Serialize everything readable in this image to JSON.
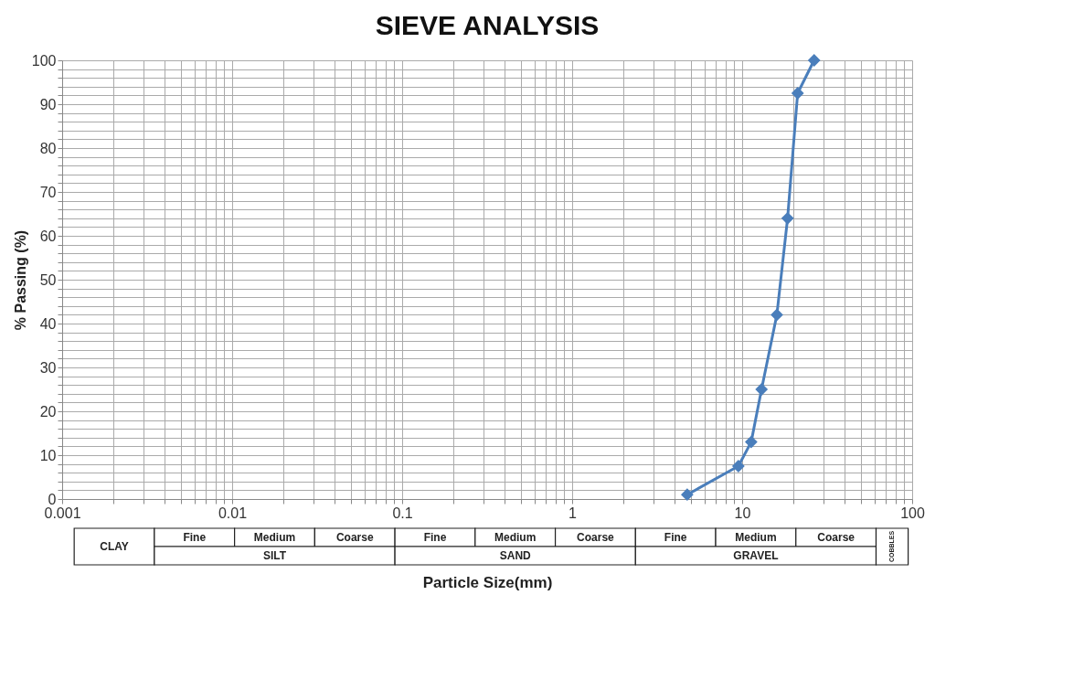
{
  "chart_data": {
    "type": "line",
    "title": "SIEVE ANALYSIS",
    "xlabel": "Particle Size(mm)",
    "ylabel": "% Passing (%)",
    "x": [
      4.75,
      9.5,
      11.3,
      13,
      16,
      18.5,
      21.2,
      26.5
    ],
    "series": [
      {
        "color": "#4a7ebb",
        "values": [
          1,
          7.5,
          13,
          25,
          42,
          64,
          92.5,
          100
        ]
      }
    ],
    "log": "x",
    "marker": "diamond",
    "line_style": "solid",
    "grid": true,
    "xlim": [
      0.001,
      100
    ],
    "ylim": [
      0,
      100
    ],
    "xticks": [
      0.001,
      {
        "value": 0.002,
        "label": null
      },
      {
        "value": 0.003,
        "label": null
      },
      {
        "value": 0.004,
        "label": null
      },
      {
        "value": 0.005,
        "label": null
      },
      {
        "value": 0.006,
        "label": null
      },
      {
        "value": 0.007,
        "label": null
      },
      {
        "value": 0.008,
        "label": null
      },
      {
        "value": 0.009,
        "label": null
      },
      0.01,
      {
        "value": 0.02,
        "label": null
      },
      {
        "value": 0.03,
        "label": null
      },
      {
        "value": 0.04,
        "label": null
      },
      {
        "value": 0.05,
        "label": null
      },
      {
        "value": 0.06,
        "label": null
      },
      {
        "value": 0.07,
        "label": null
      },
      {
        "value": 0.08,
        "label": null
      },
      {
        "value": 0.09,
        "label": null
      },
      0.1,
      {
        "value": 0.2,
        "label": null
      },
      {
        "value": 0.3,
        "label": null
      },
      {
        "value": 0.4,
        "label": null
      },
      {
        "value": 0.5,
        "label": null
      },
      {
        "value": 0.6,
        "label": null
      },
      {
        "value": 0.7,
        "label": null
      },
      {
        "value": 0.8,
        "label": null
      },
      {
        "value": 0.9,
        "label": null
      },
      1,
      {
        "value": 2,
        "label": null
      },
      {
        "value": 3,
        "label": null
      },
      {
        "value": 4,
        "label": null
      },
      {
        "value": 5,
        "label": null
      },
      {
        "value": 6,
        "label": null
      },
      {
        "value": 7,
        "label": null
      },
      {
        "value": 8,
        "label": null
      },
      {
        "value": 9,
        "label": null
      },
      10,
      {
        "value": 20,
        "label": null
      },
      {
        "value": 30,
        "label": null
      },
      {
        "value": 40,
        "label": null
      },
      {
        "value": 50,
        "label": null
      },
      {
        "value": 60,
        "label": null
      },
      {
        "value": 70,
        "label": null
      },
      {
        "value": 80,
        "label": null
      },
      {
        "value": 90,
        "label": null
      },
      100
    ],
    "yticks": [
      0,
      {
        "value": 2,
        "label": null
      },
      {
        "value": 4,
        "label": null
      },
      {
        "value": 6,
        "label": null
      },
      {
        "value": 8,
        "label": null
      },
      10,
      {
        "value": 12,
        "label": null
      },
      {
        "value": 14,
        "label": null
      },
      {
        "value": 16,
        "label": null
      },
      {
        "value": 18,
        "label": null
      },
      20,
      {
        "value": 22,
        "label": null
      },
      {
        "value": 24,
        "label": null
      },
      {
        "value": 26,
        "label": null
      },
      {
        "value": 28,
        "label": null
      },
      30,
      {
        "value": 32,
        "label": null
      },
      {
        "value": 34,
        "label": null
      },
      {
        "value": 36,
        "label": null
      },
      {
        "value": 38,
        "label": null
      },
      40,
      {
        "value": 42,
        "label": null
      },
      {
        "value": 44,
        "label": null
      },
      {
        "value": 46,
        "label": null
      },
      {
        "value": 48,
        "label": null
      },
      50,
      {
        "value": 52,
        "label": null
      },
      {
        "value": 54,
        "label": null
      },
      {
        "value": 56,
        "label": null
      },
      {
        "value": 58,
        "label": null
      },
      60,
      {
        "value": 62,
        "label": null
      },
      {
        "value": 64,
        "label": null
      },
      {
        "value": 66,
        "label": null
      },
      {
        "value": 68,
        "label": null
      },
      70,
      {
        "value": 72,
        "label": null
      },
      {
        "value": 74,
        "label": null
      },
      {
        "value": 76,
        "label": null
      },
      {
        "value": 78,
        "label": null
      },
      80,
      {
        "value": 82,
        "label": null
      },
      {
        "value": 84,
        "label": null
      },
      {
        "value": 86,
        "label": null
      },
      {
        "value": 88,
        "label": null
      },
      90,
      {
        "value": 92,
        "label": null
      },
      {
        "value": 94,
        "label": null
      },
      {
        "value": 96,
        "label": null
      },
      {
        "value": 98,
        "label": null
      },
      100
    ],
    "annotations": [
      "CLAY",
      "Fine",
      "Medium",
      "Coarse",
      "SILT",
      "Fine",
      "Medium",
      "Coarse",
      "SAND",
      "Fine",
      "Medium",
      "Coarse",
      "GRAVEL",
      "COBBLES"
    ]
  }
}
